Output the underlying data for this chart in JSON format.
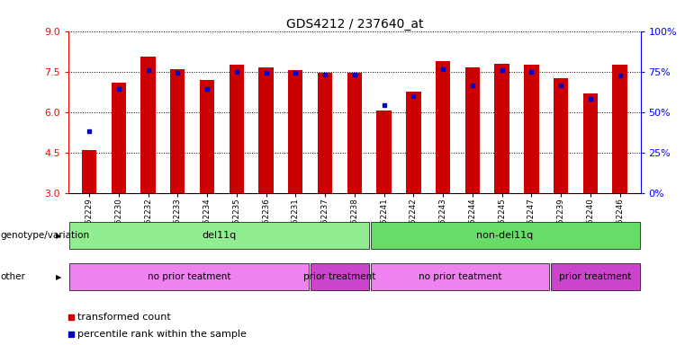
{
  "title": "GDS4212 / 237640_at",
  "samples": [
    "GSM652229",
    "GSM652230",
    "GSM652232",
    "GSM652233",
    "GSM652234",
    "GSM652235",
    "GSM652236",
    "GSM652231",
    "GSM652237",
    "GSM652238",
    "GSM652241",
    "GSM652242",
    "GSM652243",
    "GSM652244",
    "GSM652245",
    "GSM652247",
    "GSM652239",
    "GSM652240",
    "GSM652246"
  ],
  "red_values": [
    4.6,
    7.1,
    8.05,
    7.6,
    7.2,
    7.75,
    7.65,
    7.55,
    7.45,
    7.45,
    6.05,
    6.75,
    7.9,
    7.65,
    7.8,
    7.75,
    7.25,
    6.7,
    7.75
  ],
  "blue_values": [
    5.3,
    6.85,
    7.55,
    7.45,
    6.85,
    7.5,
    7.45,
    7.45,
    7.4,
    7.4,
    6.25,
    6.6,
    7.6,
    7.0,
    7.55,
    7.5,
    7.0,
    6.5,
    7.35
  ],
  "ylim": [
    3,
    9
  ],
  "yticks": [
    3,
    4.5,
    6,
    7.5,
    9
  ],
  "right_yticks": [
    0,
    25,
    50,
    75,
    100
  ],
  "right_yticklabels": [
    "0%",
    "25%",
    "50%",
    "75%",
    "100%"
  ],
  "bar_color": "#CC0000",
  "dot_color": "#0000CC",
  "genotype_groups": [
    {
      "label": "del11q",
      "start": 0,
      "end": 10,
      "color": "#90EE90"
    },
    {
      "label": "non-del11q",
      "start": 10,
      "end": 19,
      "color": "#66DD66"
    }
  ],
  "other_groups": [
    {
      "label": "no prior teatment",
      "start": 0,
      "end": 8,
      "color": "#EE82EE"
    },
    {
      "label": "prior treatment",
      "start": 8,
      "end": 10,
      "color": "#CC44CC"
    },
    {
      "label": "no prior teatment",
      "start": 10,
      "end": 16,
      "color": "#EE82EE"
    },
    {
      "label": "prior treatment",
      "start": 16,
      "end": 19,
      "color": "#CC44CC"
    }
  ]
}
